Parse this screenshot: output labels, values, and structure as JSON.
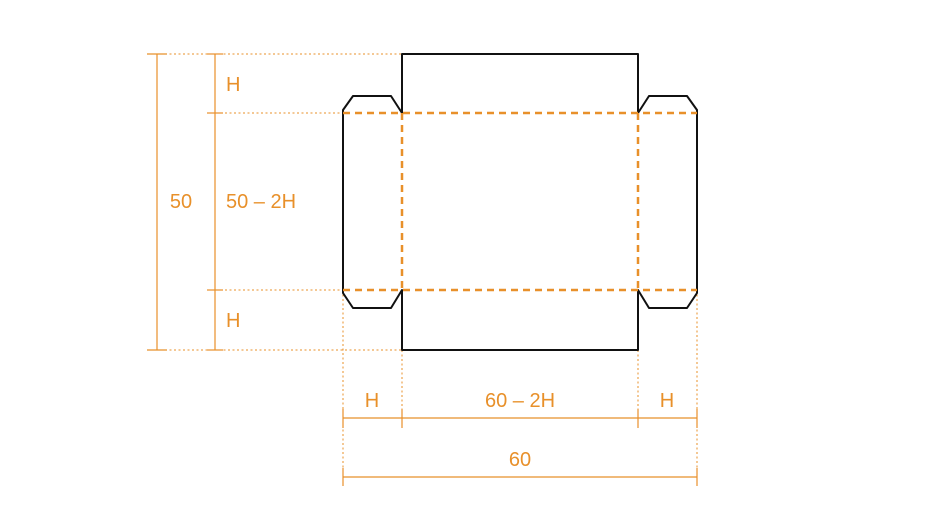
{
  "labels": {
    "left_total": "50",
    "left_top": "H",
    "left_middle": "50 – 2H",
    "left_bottom": "H",
    "bottom_left": "H",
    "bottom_middle": "60 – 2H",
    "bottom_right": "H",
    "bottom_total": "60"
  },
  "colors": {
    "outline": "#111111",
    "dimension": "#E8902A"
  }
}
